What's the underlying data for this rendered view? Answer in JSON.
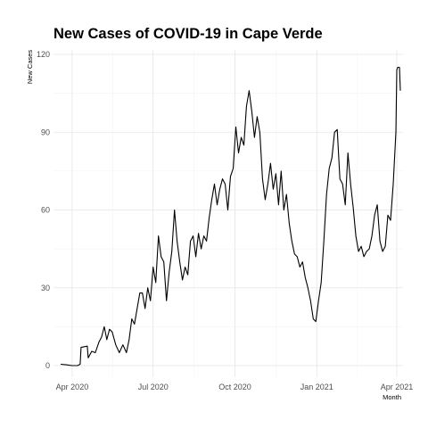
{
  "chart_data": {
    "type": "line",
    "title": "New Cases of COVID-19 in Cape Verde",
    "xlabel": "Month",
    "ylabel": "New Cases",
    "ylim": [
      0,
      120
    ],
    "yticks": [
      0,
      30,
      60,
      90,
      120
    ],
    "ytick_labels": [
      "0",
      "30",
      "60",
      "90",
      "120"
    ],
    "xlim": [
      "2020-03-11",
      "2021-04-08"
    ],
    "xticks": [
      "2020-04-01",
      "2020-07-01",
      "2020-10-01",
      "2021-01-01",
      "2021-04-01"
    ],
    "xtick_labels": [
      "Apr 2020",
      "Jul 2020",
      "Oct 2020",
      "Jan 2021",
      "Apr 2021"
    ],
    "grid": true,
    "series": [
      {
        "color": "#000000",
        "x": [
          "2020-03-19",
          "2020-03-25",
          "2020-04-01",
          "2020-04-07",
          "2020-04-10",
          "2020-04-11",
          "2020-04-18",
          "2020-04-19",
          "2020-04-23",
          "2020-04-27",
          "2020-05-01",
          "2020-05-04",
          "2020-05-07",
          "2020-05-10",
          "2020-05-13",
          "2020-05-16",
          "2020-05-20",
          "2020-05-24",
          "2020-05-28",
          "2020-06-01",
          "2020-06-04",
          "2020-06-07",
          "2020-06-10",
          "2020-06-13",
          "2020-06-16",
          "2020-06-19",
          "2020-06-22",
          "2020-06-25",
          "2020-06-28",
          "2020-07-01",
          "2020-07-04",
          "2020-07-07",
          "2020-07-10",
          "2020-07-13",
          "2020-07-16",
          "2020-07-19",
          "2020-07-22",
          "2020-07-25",
          "2020-07-28",
          "2020-07-31",
          "2020-08-03",
          "2020-08-06",
          "2020-08-09",
          "2020-08-12",
          "2020-08-15",
          "2020-08-18",
          "2020-08-21",
          "2020-08-24",
          "2020-08-27",
          "2020-08-30",
          "2020-09-02",
          "2020-09-05",
          "2020-09-08",
          "2020-09-11",
          "2020-09-14",
          "2020-09-17",
          "2020-09-20",
          "2020-09-23",
          "2020-09-26",
          "2020-09-29",
          "2020-10-02",
          "2020-10-05",
          "2020-10-08",
          "2020-10-11",
          "2020-10-14",
          "2020-10-17",
          "2020-10-20",
          "2020-10-23",
          "2020-10-26",
          "2020-10-29",
          "2020-11-01",
          "2020-11-04",
          "2020-11-07",
          "2020-11-10",
          "2020-11-13",
          "2020-11-16",
          "2020-11-19",
          "2020-11-22",
          "2020-11-25",
          "2020-11-28",
          "2020-12-01",
          "2020-12-04",
          "2020-12-07",
          "2020-12-10",
          "2020-12-13",
          "2020-12-16",
          "2020-12-19",
          "2020-12-22",
          "2020-12-25",
          "2020-12-28",
          "2020-12-31",
          "2021-01-03",
          "2021-01-06",
          "2021-01-09",
          "2021-01-12",
          "2021-01-15",
          "2021-01-18",
          "2021-01-21",
          "2021-01-24",
          "2021-01-27",
          "2021-01-30",
          "2021-02-02",
          "2021-02-05",
          "2021-02-08",
          "2021-02-11",
          "2021-02-14",
          "2021-02-17",
          "2021-02-20",
          "2021-02-23",
          "2021-02-26",
          "2021-03-01",
          "2021-03-04",
          "2021-03-07",
          "2021-03-10",
          "2021-03-13",
          "2021-03-16",
          "2021-03-19",
          "2021-03-22",
          "2021-03-25",
          "2021-03-28",
          "2021-03-31",
          "2021-04-01",
          "2021-04-02",
          "2021-04-04",
          "2021-04-05"
        ],
        "y": [
          0.5,
          0.3,
          0,
          0,
          0.5,
          7,
          7.5,
          3,
          5.5,
          5,
          9,
          11,
          15,
          10,
          14,
          13,
          8,
          5,
          8,
          5,
          10,
          18,
          16,
          22,
          28,
          28,
          22,
          30,
          25,
          38,
          32,
          50,
          42,
          40,
          25,
          36,
          44,
          60,
          48,
          40,
          33,
          38,
          35,
          48,
          50,
          42,
          51,
          45,
          50,
          48,
          57,
          64,
          70,
          62,
          68,
          72,
          70,
          60,
          73,
          76,
          92,
          82,
          88,
          85,
          100,
          106,
          98,
          88,
          96,
          90,
          72,
          64,
          70,
          78,
          68,
          74,
          62,
          75,
          60,
          66,
          55,
          48,
          43,
          42,
          38,
          40,
          34,
          30,
          25,
          18,
          17,
          25,
          32,
          48,
          66,
          76,
          80,
          90,
          91,
          72,
          70,
          62,
          82,
          70,
          61,
          50,
          44,
          46,
          42,
          44,
          45,
          50,
          58,
          62,
          48,
          44,
          46,
          58,
          56,
          70,
          90,
          114,
          115,
          115,
          106
        ]
      }
    ]
  }
}
